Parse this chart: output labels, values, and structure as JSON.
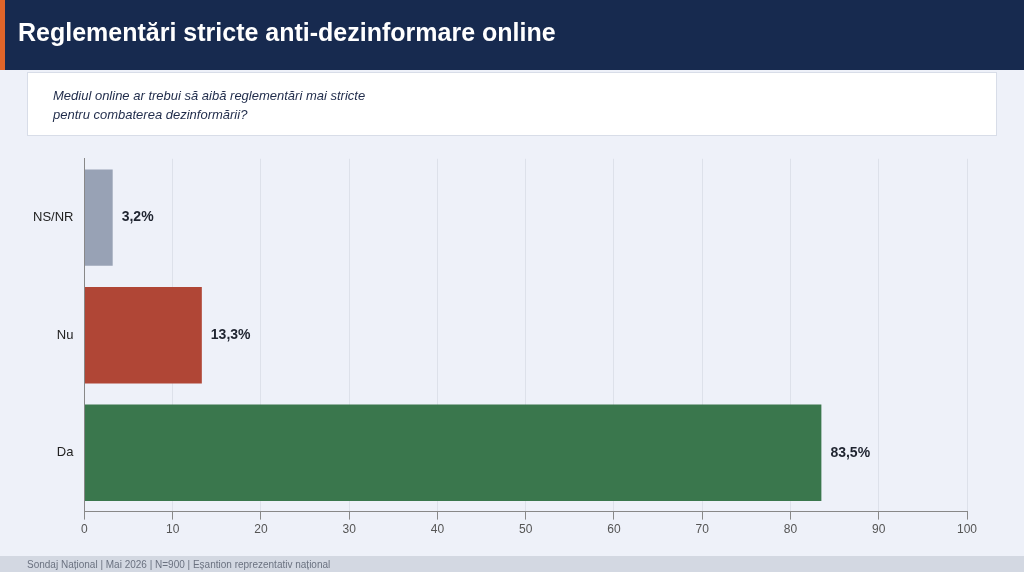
{
  "chart_data": {
    "type": "bar",
    "orientation": "horizontal",
    "title": "Reglementări stricte anti-dezinformare online",
    "subtitle": "Mediul online ar trebui să aibă reglementări mai stricte\npentru combaterea dezinformării?",
    "categories": [
      "NS/NR",
      "Nu",
      "Da"
    ],
    "values": [
      3.2,
      13.3,
      83.5
    ],
    "colors": [
      "#98a2b5",
      "#b04636",
      "#3a774d"
    ],
    "value_labels": [
      "3,2%",
      "13,3%",
      "83,5%"
    ],
    "xlim": [
      0,
      100
    ],
    "xticks": [
      0,
      10,
      20,
      30,
      40,
      50,
      60,
      70,
      80,
      90,
      100
    ],
    "grid": "x",
    "annotations": [
      "Sondaj Național | Mai 2026 | N=900 | Eșantion reprezentativ național"
    ]
  }
}
